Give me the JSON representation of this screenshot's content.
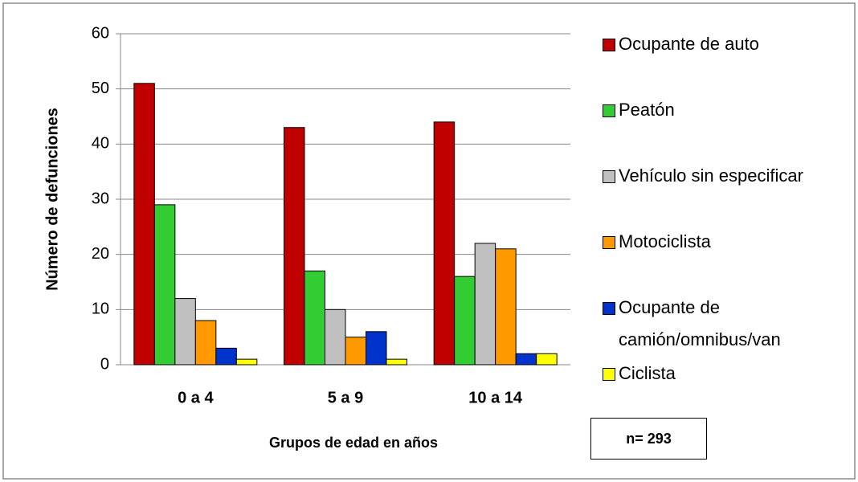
{
  "chart_data": {
    "type": "bar",
    "categories": [
      "0 a 4",
      "5 a 9",
      "10 a 14"
    ],
    "series": [
      {
        "name": "Ocupante de auto",
        "color": "#c00000",
        "values": [
          51,
          43,
          44
        ]
      },
      {
        "name": "Peatón",
        "color": "#33cc33",
        "values": [
          29,
          17,
          16
        ]
      },
      {
        "name": "Vehículo sin especificar",
        "color": "#c0c0c0",
        "values": [
          12,
          10,
          22
        ]
      },
      {
        "name": "Motociclista",
        "color": "#ff9900",
        "values": [
          8,
          5,
          21
        ]
      },
      {
        "name": "Ocupante de camión/omnibus/van",
        "color": "#0033cc",
        "values": [
          3,
          6,
          2
        ]
      },
      {
        "name": "Ciclista",
        "color": "#ffff00",
        "values": [
          1,
          1,
          2
        ]
      }
    ],
    "ylim": [
      0,
      60
    ],
    "yticks": [
      0,
      10,
      20,
      30,
      40,
      50,
      60
    ],
    "grid": true,
    "xlabel": "Grupos de edad en años",
    "ylabel": "Número de defunciones",
    "annotation": "n= 293",
    "legend": "right"
  }
}
